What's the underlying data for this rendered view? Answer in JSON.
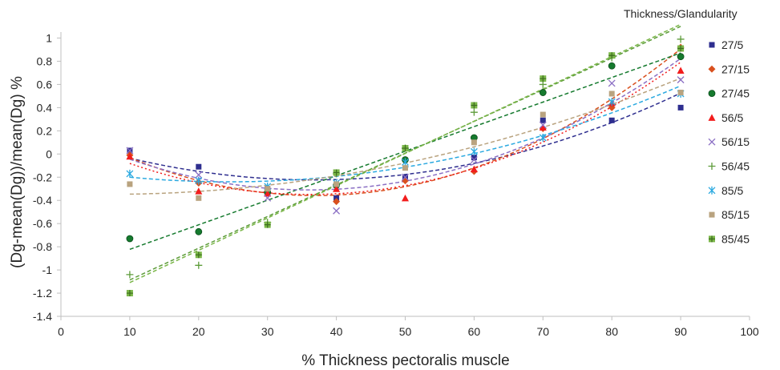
{
  "chart_data": {
    "type": "scatter",
    "title": "",
    "xlabel": "% Thickness pectoralis muscle",
    "ylabel": "(Dg-mean(Dg))/mean(Dg) %",
    "legend_title": "Thickness/Glandularity",
    "legend_position": "right",
    "grid": false,
    "xlim": [
      0,
      100
    ],
    "ylim": [
      -1.4,
      1.1
    ],
    "x_ticks": [
      0,
      10,
      20,
      30,
      40,
      50,
      60,
      70,
      80,
      90,
      100
    ],
    "y_ticks": [
      -1.4,
      -1.2,
      -1,
      -0.8,
      -0.6,
      -0.4,
      -0.2,
      0,
      0.2,
      0.4,
      0.6,
      0.8,
      1
    ],
    "x": [
      10,
      20,
      30,
      40,
      50,
      60,
      70,
      80,
      90
    ],
    "series": [
      {
        "name": "27/5",
        "marker": "square",
        "color": "#2e2e8f",
        "trend": "poly",
        "values": [
          0.03,
          -0.11,
          -0.3,
          -0.38,
          -0.2,
          -0.03,
          0.29,
          0.29,
          0.4
        ]
      },
      {
        "name": "27/15",
        "marker": "diamond",
        "color": "#d9501e",
        "trend": "poly",
        "values": [
          -0.01,
          -0.25,
          -0.33,
          -0.41,
          -0.23,
          -0.15,
          0.22,
          0.4,
          0.92
        ]
      },
      {
        "name": "27/45",
        "marker": "circle",
        "color": "#157a2e",
        "trend": "linear",
        "values": [
          -0.73,
          -0.67,
          -0.33,
          -0.27,
          -0.05,
          0.14,
          0.53,
          0.76,
          0.84
        ]
      },
      {
        "name": "56/5",
        "marker": "triangle",
        "color": "#f21d1d",
        "trend": "poly",
        "values": [
          -0.02,
          -0.32,
          -0.34,
          -0.3,
          -0.38,
          -0.13,
          0.23,
          0.44,
          0.72
        ]
      },
      {
        "name": "56/15",
        "marker": "x",
        "color": "#8b6fc4",
        "trend": "poly",
        "values": [
          0.03,
          -0.18,
          -0.38,
          -0.49,
          -0.2,
          -0.05,
          0.25,
          0.61,
          0.64
        ]
      },
      {
        "name": "56/45",
        "marker": "plus",
        "color": "#5d9c3a",
        "trend": "linear",
        "values": [
          -1.04,
          -0.96,
          -0.59,
          -0.17,
          0.05,
          0.36,
          0.6,
          0.83,
          0.99
        ]
      },
      {
        "name": "85/5",
        "marker": "asterisk",
        "color": "#2aa9e0",
        "trend": "poly",
        "values": [
          -0.17,
          -0.23,
          -0.28,
          -0.25,
          -0.07,
          0.02,
          0.14,
          0.45,
          0.52
        ]
      },
      {
        "name": "85/15",
        "marker": "square",
        "color": "#b9a37f",
        "trend": "poly",
        "values": [
          -0.26,
          -0.38,
          -0.3,
          -0.26,
          -0.12,
          0.1,
          0.34,
          0.52,
          0.53
        ]
      },
      {
        "name": "85/45",
        "marker": "square-plus",
        "color": "#7ab648",
        "trend": "linear",
        "values": [
          -1.2,
          -0.87,
          -0.61,
          -0.16,
          0.05,
          0.42,
          0.65,
          0.85,
          0.91
        ]
      }
    ]
  }
}
